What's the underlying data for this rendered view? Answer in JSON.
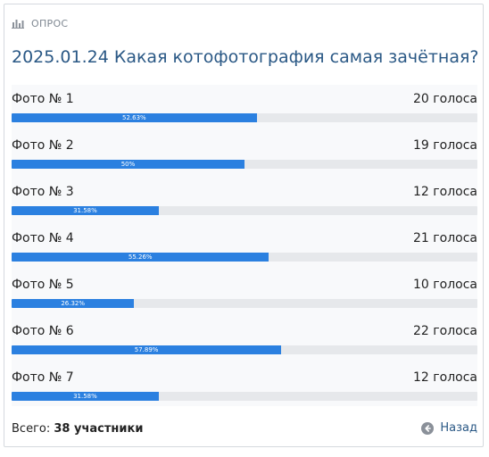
{
  "poll": {
    "header_label": "ОПРОС",
    "question": "2025.01.24 Какая котофотография самая зачётная?",
    "options": [
      {
        "label": "Фото № 1",
        "votes": "20 голоса",
        "percent": "52.63%",
        "fraction": 0.5263
      },
      {
        "label": "Фото № 2",
        "votes": "19 голоса",
        "percent": "50%",
        "fraction": 0.5
      },
      {
        "label": "Фото № 3",
        "votes": "12 голоса",
        "percent": "31.58%",
        "fraction": 0.3158
      },
      {
        "label": "Фото № 4",
        "votes": "21 голоса",
        "percent": "55.26%",
        "fraction": 0.5526
      },
      {
        "label": "Фото № 5",
        "votes": "10 голоса",
        "percent": "26.32%",
        "fraction": 0.2632
      },
      {
        "label": "Фото № 6",
        "votes": "22 голоса",
        "percent": "57.89%",
        "fraction": 0.5789
      },
      {
        "label": "Фото № 7",
        "votes": "12 голоса",
        "percent": "31.58%",
        "fraction": 0.3158
      }
    ],
    "footer": {
      "total_prefix": "Всего: ",
      "total_count": "38 участники",
      "back_label": "Назад"
    }
  },
  "icons": {
    "header": "bar-chart-icon",
    "back": "arrow-left-circle-icon"
  },
  "colors": {
    "accent": "#2b80e0",
    "link": "#2a5885",
    "track": "#e6e8eb"
  }
}
